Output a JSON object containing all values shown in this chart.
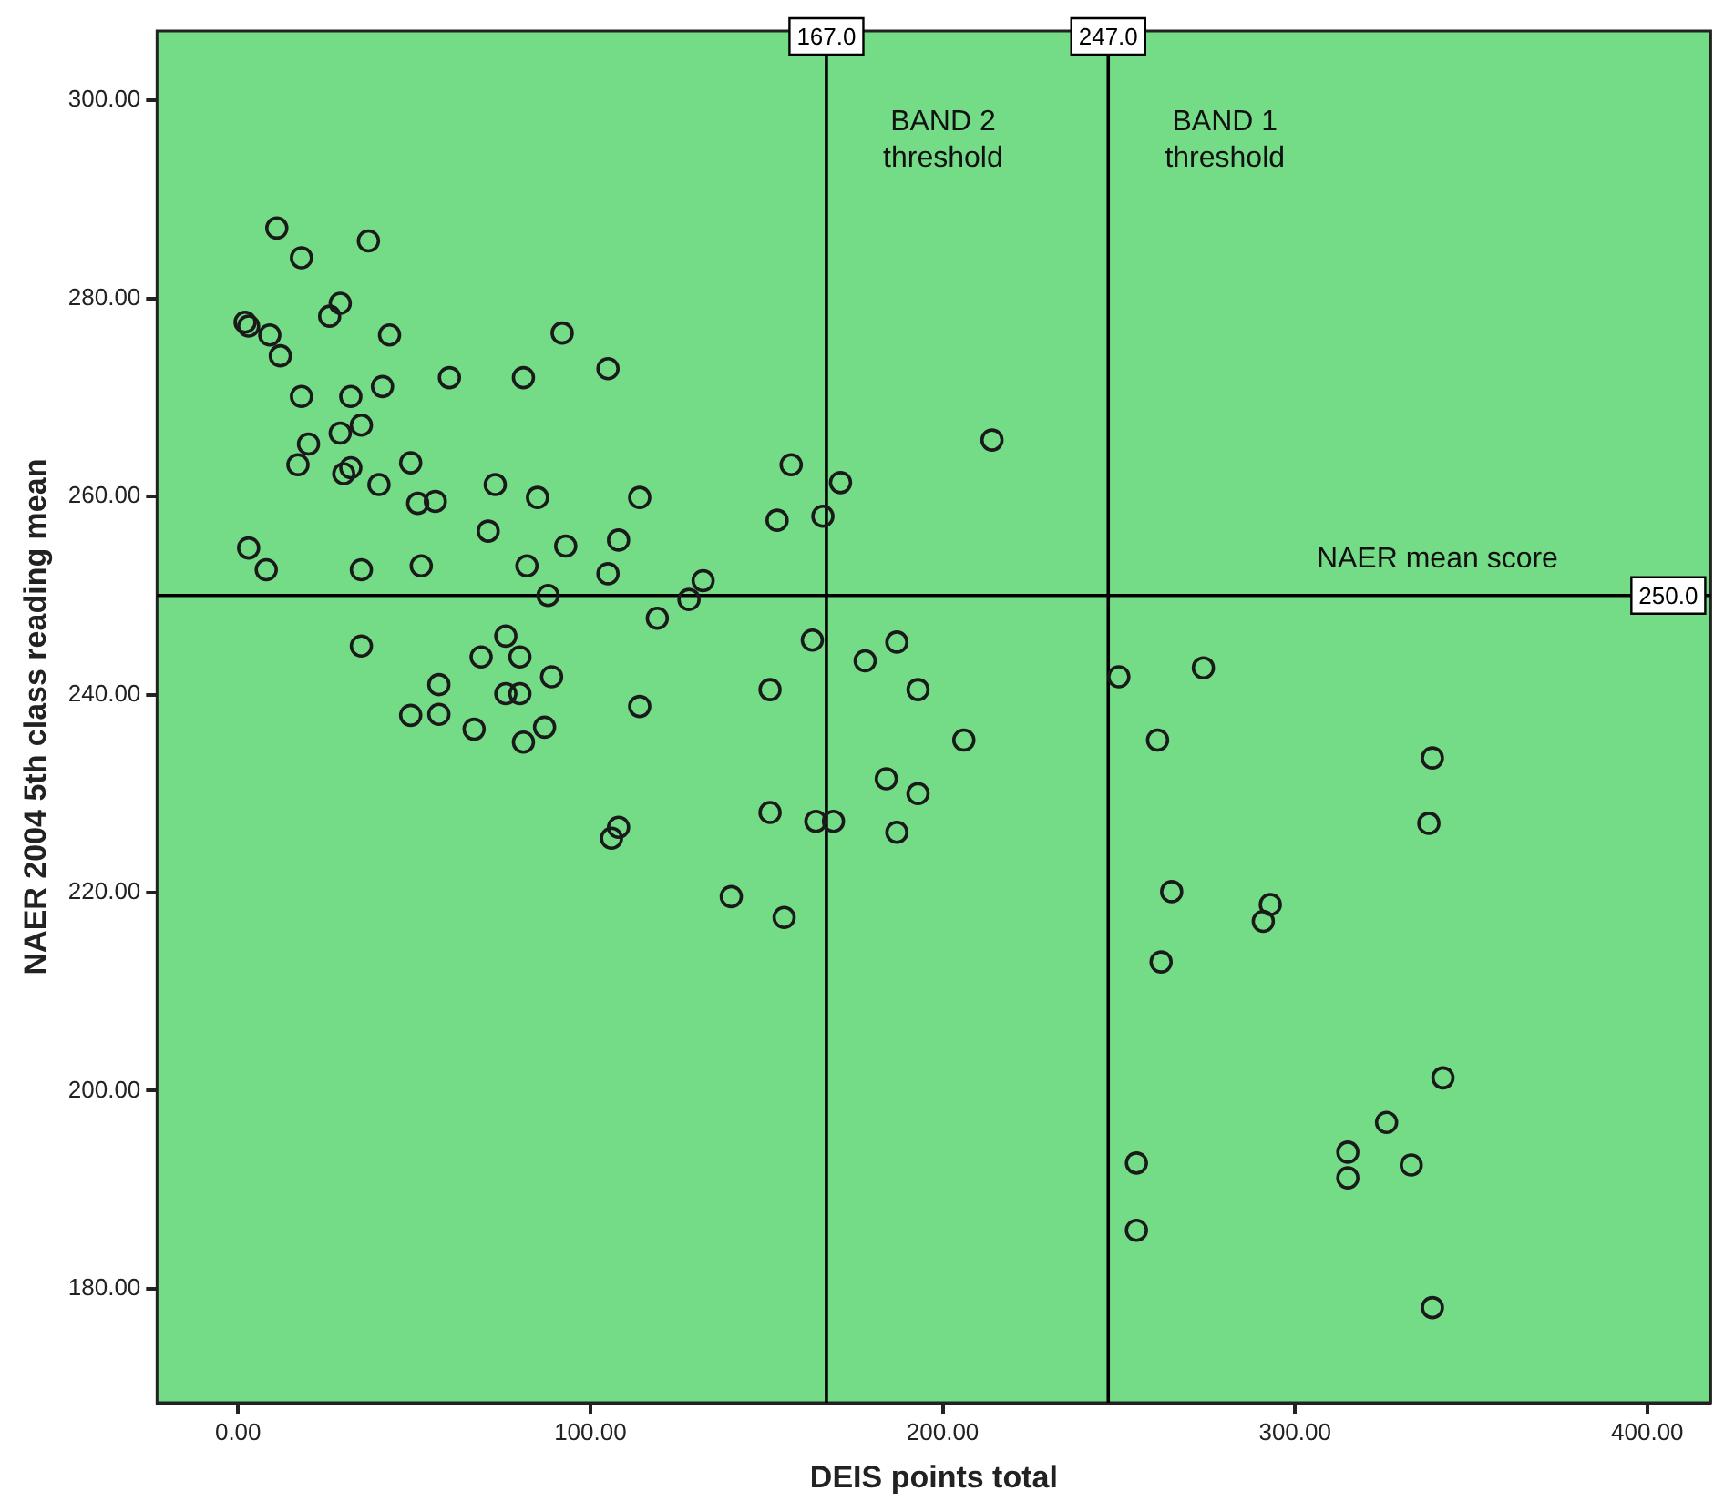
{
  "chart_data": {
    "type": "scatter",
    "xlabel": "DEIS points total",
    "ylabel": "NAER 2004 5th class reading mean",
    "xlim": [
      -23,
      418
    ],
    "ylim": [
      168.5,
      307
    ],
    "xticks": [
      {
        "value": 0,
        "label": "0.00"
      },
      {
        "value": 100,
        "label": "100.00"
      },
      {
        "value": 200,
        "label": "200.00"
      },
      {
        "value": 300,
        "label": "300.00"
      },
      {
        "value": 400,
        "label": "400.00"
      }
    ],
    "yticks": [
      {
        "value": 180,
        "label": "180.00"
      },
      {
        "value": 200,
        "label": "200.00"
      },
      {
        "value": 220,
        "label": "220.00"
      },
      {
        "value": 240,
        "label": "240.00"
      },
      {
        "value": 260,
        "label": "260.00"
      },
      {
        "value": 280,
        "label": "280.00"
      },
      {
        "value": 300,
        "label": "300.00"
      }
    ],
    "legend": false,
    "marker": "circle",
    "ref_lines": [
      {
        "axis": "x",
        "value": 167,
        "label": "167.0",
        "color": "#000000"
      },
      {
        "axis": "x",
        "value": 247,
        "label": "247.0",
        "color": "#000000"
      },
      {
        "axis": "y",
        "value": 250,
        "label": "250.0",
        "color": "#000000"
      }
    ],
    "annotations": [
      "BAND 2 threshold",
      "BAND 1 threshold",
      "NAER mean score"
    ],
    "series": [
      {
        "color": "#1a1a1a",
        "x": [
          11,
          18,
          37,
          2,
          3,
          9,
          12,
          26,
          29,
          43,
          92,
          105,
          60,
          81,
          18,
          32,
          41,
          35,
          29,
          20,
          17,
          49,
          30,
          32,
          40,
          51,
          56,
          73,
          85,
          71,
          93,
          108,
          3,
          8,
          35,
          52,
          82,
          105,
          88,
          114,
          157,
          171,
          153,
          166,
          132,
          128,
          119,
          214,
          163,
          187,
          178,
          193,
          151,
          114,
          206,
          184,
          193,
          151,
          164,
          169,
          187,
          108,
          106,
          140,
          155,
          35,
          76,
          69,
          80,
          89,
          57,
          76,
          80,
          49,
          57,
          67,
          81,
          87,
          250,
          274,
          261,
          339,
          338,
          265,
          293,
          291,
          262,
          342,
          326,
          315,
          315,
          333,
          255,
          255,
          339
        ],
        "values": [
          287.1,
          284.1,
          285.8,
          277.6,
          277.2,
          276.3,
          274.2,
          278.2,
          279.5,
          276.3,
          276.5,
          272.9,
          272.0,
          272.0,
          270.1,
          270.1,
          271.1,
          267.2,
          266.4,
          265.3,
          263.2,
          263.4,
          262.3,
          262.9,
          261.2,
          259.3,
          259.5,
          261.2,
          259.9,
          256.5,
          255.0,
          255.6,
          254.8,
          252.6,
          252.6,
          253.0,
          253.0,
          252.2,
          250.0,
          259.9,
          263.2,
          261.4,
          257.6,
          258.0,
          251.5,
          249.6,
          247.7,
          265.7,
          245.5,
          245.3,
          243.4,
          240.5,
          240.5,
          238.8,
          235.4,
          231.5,
          230.0,
          228.1,
          227.2,
          227.2,
          226.1,
          226.6,
          225.5,
          219.6,
          217.5,
          244.9,
          245.9,
          243.8,
          243.8,
          241.8,
          241.0,
          240.1,
          240.1,
          237.9,
          238.0,
          236.5,
          235.2,
          236.7,
          241.8,
          242.7,
          235.4,
          233.6,
          227.0,
          220.1,
          218.8,
          217.1,
          213.0,
          201.3,
          196.8,
          193.8,
          191.2,
          192.5,
          192.7,
          185.9,
          178.1
        ]
      }
    ]
  }
}
